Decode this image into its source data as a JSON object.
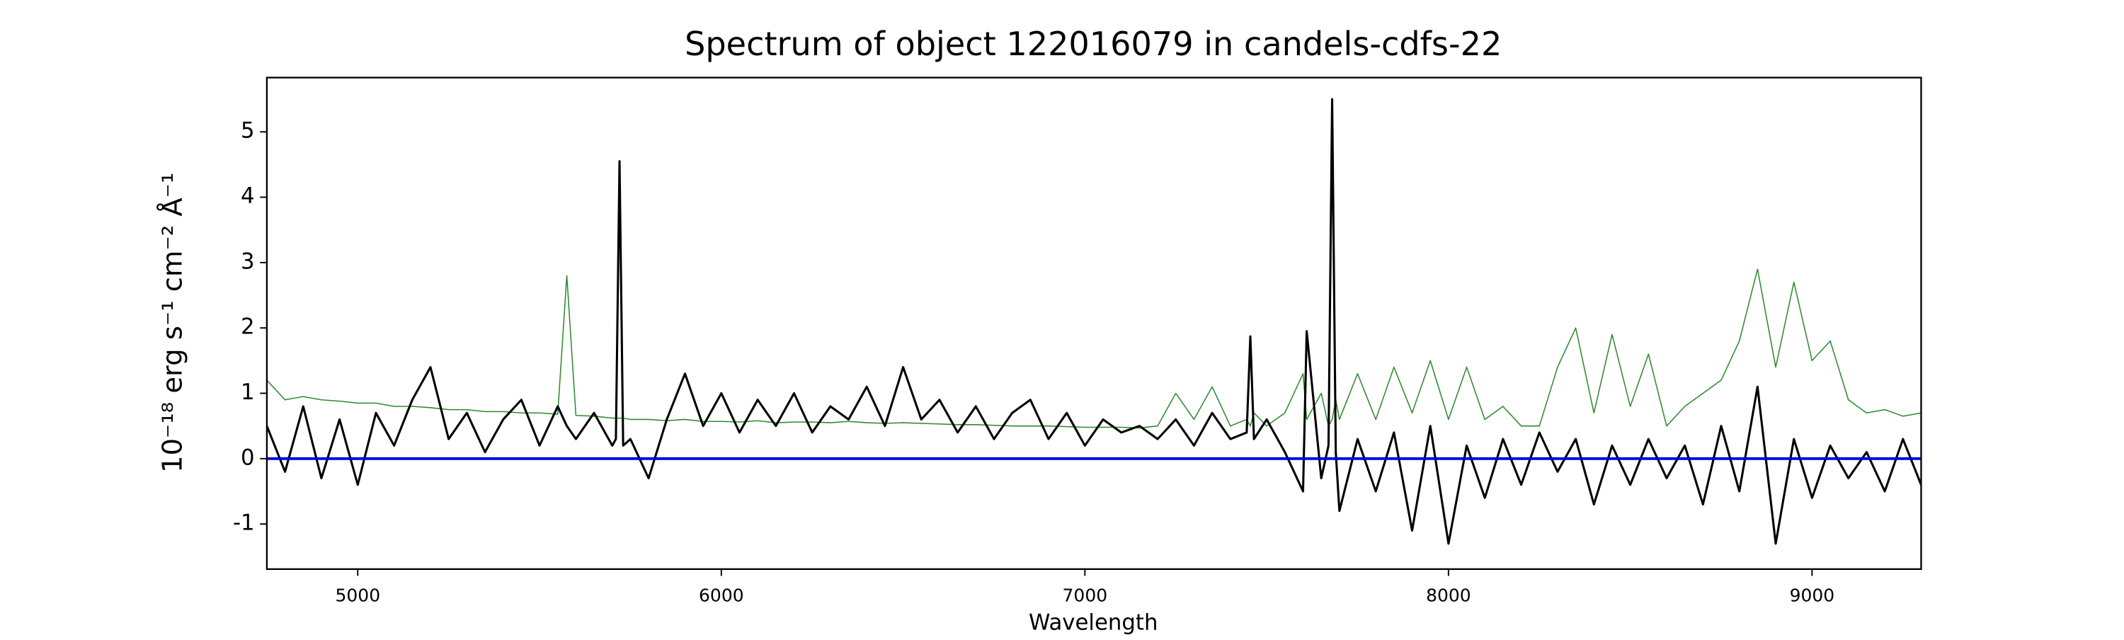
{
  "chart_data": {
    "type": "line",
    "title": "Spectrum of object 122016079 in candels-cdfs-22",
    "xlabel": "Wavelength",
    "ylabel": "10⁻¹⁸ erg s⁻¹ cm⁻² Å⁻¹",
    "x": [
      4750,
      4800,
      4850,
      4900,
      4950,
      5000,
      5050,
      5100,
      5150,
      5200,
      5250,
      5300,
      5350,
      5400,
      5450,
      5500,
      5550,
      5575,
      5600,
      5650,
      5700,
      5710,
      5720,
      5730,
      5750,
      5800,
      5850,
      5900,
      5950,
      6000,
      6050,
      6100,
      6150,
      6200,
      6250,
      6300,
      6350,
      6400,
      6450,
      6500,
      6550,
      6600,
      6650,
      6700,
      6750,
      6800,
      6850,
      6900,
      6950,
      7000,
      7050,
      7100,
      7150,
      7200,
      7250,
      7300,
      7350,
      7400,
      7445,
      7455,
      7465,
      7500,
      7550,
      7600,
      7610,
      7650,
      7670,
      7680,
      7690,
      7700,
      7750,
      7800,
      7850,
      7900,
      7950,
      8000,
      8050,
      8100,
      8150,
      8200,
      8250,
      8300,
      8350,
      8400,
      8450,
      8500,
      8550,
      8600,
      8650,
      8700,
      8750,
      8800,
      8850,
      8900,
      8950,
      9000,
      9050,
      9100,
      9150,
      9200,
      9250,
      9300
    ],
    "series": [
      {
        "color": "#2e8b2e",
        "width": 0.8,
        "values": [
          1.2,
          0.9,
          0.95,
          0.9,
          0.88,
          0.85,
          0.85,
          0.8,
          0.8,
          0.78,
          0.75,
          0.75,
          0.72,
          0.72,
          0.7,
          0.7,
          0.68,
          2.8,
          0.66,
          0.65,
          0.62,
          0.62,
          0.62,
          0.62,
          0.6,
          0.6,
          0.58,
          0.6,
          0.57,
          0.57,
          0.56,
          0.58,
          0.55,
          0.56,
          0.56,
          0.55,
          0.57,
          0.55,
          0.54,
          0.55,
          0.54,
          0.53,
          0.52,
          0.52,
          0.51,
          0.5,
          0.5,
          0.5,
          0.49,
          0.48,
          0.48,
          0.48,
          0.47,
          0.5,
          1.0,
          0.6,
          1.1,
          0.5,
          0.6,
          0.5,
          0.7,
          0.5,
          0.7,
          1.3,
          0.6,
          1.0,
          0.5,
          0.6,
          0.9,
          0.6,
          1.3,
          0.6,
          1.4,
          0.7,
          1.5,
          0.6,
          1.4,
          0.6,
          0.8,
          0.5,
          0.5,
          1.4,
          2.0,
          0.7,
          1.9,
          0.8,
          1.6,
          0.5,
          0.8,
          1.0,
          1.2,
          1.8,
          2.9,
          1.4,
          2.7,
          1.5,
          1.8,
          0.9,
          0.7,
          0.75,
          0.65,
          0.7
        ]
      },
      {
        "color": "#000000",
        "width": 1.6,
        "values": [
          0.5,
          -0.2,
          0.8,
          -0.3,
          0.6,
          -0.4,
          0.7,
          0.2,
          0.9,
          1.4,
          0.3,
          0.7,
          0.1,
          0.6,
          0.9,
          0.2,
          0.8,
          0.5,
          0.3,
          0.7,
          0.2,
          0.3,
          4.55,
          0.2,
          0.3,
          -0.3,
          0.6,
          1.3,
          0.5,
          1.0,
          0.4,
          0.9,
          0.5,
          1.0,
          0.4,
          0.8,
          0.6,
          1.1,
          0.5,
          1.4,
          0.6,
          0.9,
          0.4,
          0.8,
          0.3,
          0.7,
          0.9,
          0.3,
          0.7,
          0.2,
          0.6,
          0.4,
          0.5,
          0.3,
          0.6,
          0.2,
          0.7,
          0.3,
          0.4,
          1.87,
          0.3,
          0.6,
          0.1,
          -0.5,
          1.95,
          -0.3,
          0.2,
          5.5,
          0.1,
          -0.8,
          0.3,
          -0.5,
          0.4,
          -1.1,
          0.5,
          -1.3,
          0.2,
          -0.6,
          0.3,
          -0.4,
          0.4,
          -0.2,
          0.3,
          -0.7,
          0.2,
          -0.4,
          0.3,
          -0.3,
          0.2,
          -0.7,
          0.5,
          -0.5,
          1.1,
          -1.3,
          0.3,
          -0.6,
          0.2,
          -0.3,
          0.1,
          -0.5,
          0.3,
          -0.4
        ]
      }
    ],
    "hlines": [
      {
        "value": 0,
        "color": "#0000dd"
      }
    ],
    "xlim": [
      4750,
      9300
    ],
    "ylim": [
      -1.69,
      5.83
    ],
    "xticks": [
      5000,
      6000,
      7000,
      8000,
      9000
    ],
    "yticks": [
      -1,
      0,
      1,
      2,
      3,
      4,
      5
    ]
  }
}
